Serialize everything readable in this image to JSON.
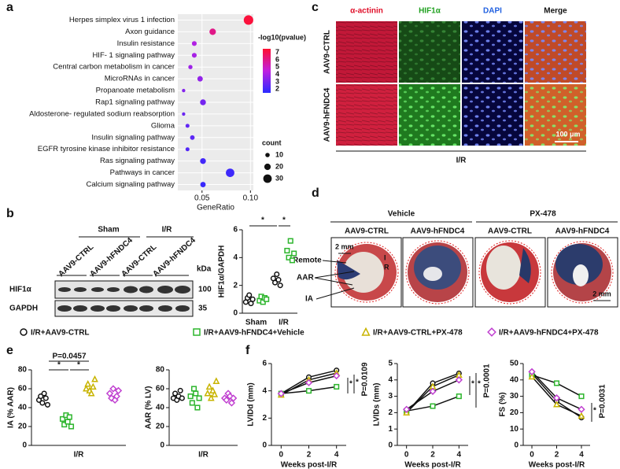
{
  "panels": [
    "a",
    "b",
    "c",
    "d",
    "e",
    "f"
  ],
  "legend": [
    {
      "name": "I/R+AAV9-CTRL",
      "color": "#111111",
      "marker": "circle"
    },
    {
      "name": "I/R+AAV9-hFNDC4+Vehicle",
      "color": "#2db52d",
      "marker": "square"
    },
    {
      "name": "I/R+AAV9-CTRL+PX-478",
      "color": "#c8b400",
      "marker": "triangle"
    },
    {
      "name": "I/R+AAV9-hFNDC4+PX-478",
      "color": "#c040d0",
      "marker": "diamond"
    }
  ],
  "blot": {
    "groups": [
      "Sham",
      "I/R"
    ],
    "lanes": [
      "AAV9-CTRL",
      "AAV9-hFNDC4",
      "AAV9-CTRL",
      "AAV9-hFNDC4"
    ],
    "unit": "kDa",
    "bands": [
      {
        "name": "HIF1α",
        "size": "100"
      },
      {
        "name": "GAPDH",
        "size": "35"
      }
    ]
  },
  "micrographs": {
    "channels": [
      "α-actinin",
      "HIF1α",
      "DAPI",
      "Merge"
    ],
    "rows": [
      "AAV9-CTRL",
      "AAV9-hFNDC4"
    ],
    "scale": "100 μm",
    "condition": "I/R"
  },
  "sections": {
    "groups": [
      "Vehicle",
      "PX-478"
    ],
    "columns": [
      "AAV9-CTRL",
      "AAV9-hFNDC4",
      "AAV9-CTRL",
      "AAV9-hFNDC4"
    ],
    "regions": [
      "Remote",
      "AAR",
      "IA"
    ],
    "markers": [
      "I",
      "R"
    ],
    "scales": [
      "2 mm",
      "2 mm"
    ]
  },
  "chart_data": [
    {
      "type": "dot",
      "categories": [
        "Herpes simplex virus 1 infection",
        "Axon guidance",
        "Insulin resistance",
        "HIF- 1 signaling pathway",
        "Central carbon metabolism in cancer",
        "MicroRNAs in cancer",
        "Propanoate metabolism",
        "Rap1 signaling pathway",
        "Aldosterone- regulated sodium reabsorption",
        "Glioma",
        "Insulin signaling pathway",
        "EGFR tyrosine kinase inhibitor resistance",
        "Ras signaling pathway",
        "Pathways in cancer",
        "Calcium signaling pathway"
      ],
      "x": [
        0.098,
        0.061,
        0.042,
        0.042,
        0.038,
        0.048,
        0.031,
        0.051,
        0.031,
        0.035,
        0.04,
        0.035,
        0.051,
        0.079,
        0.051
      ],
      "color_values": [
        7.3,
        6.0,
        4.2,
        4.0,
        3.8,
        3.6,
        3.3,
        3.0,
        2.8,
        2.6,
        2.5,
        2.3,
        2.0,
        1.9,
        1.8
      ],
      "sizes": [
        35,
        20,
        12,
        12,
        9,
        15,
        5,
        17,
        5,
        8,
        11,
        8,
        17,
        30,
        15
      ],
      "xlabel": "GeneRatio",
      "xlim": [
        0.025,
        0.103
      ],
      "xticks": [
        0.05,
        {
          "value": 0.1,
          "label": "0.10"
        }
      ],
      "color_title": "-log10(pvalue)",
      "color_lim": [
        1.5,
        7.5
      ],
      "color_ticks": [
        2,
        3,
        4,
        5,
        6,
        7
      ],
      "colors": [
        "#2a2aff",
        "#c020e0",
        "#ff1030"
      ],
      "size_title": "count",
      "size_ticks": [
        10,
        20,
        30
      ]
    },
    {
      "type": "strip",
      "categories": [
        "Sham",
        "I/R"
      ],
      "ylabel": "HIF1α/GAPDH",
      "ylim": [
        0,
        6
      ],
      "yticks": [
        0,
        2,
        4,
        6
      ],
      "series": [
        {
          "color": "#111111",
          "marker": "circle",
          "values": [
            [
              0.8,
              1.1,
              1.3,
              0.7,
              1.0
            ],
            [
              2.5,
              2.2,
              2.8,
              2.4,
              2.0
            ]
          ]
        },
        {
          "color": "#2db52d",
          "marker": "square",
          "values": [
            [
              0.9,
              1.2,
              0.8,
              1.1,
              1.0
            ],
            [
              4.5,
              4.0,
              5.2,
              3.8,
              4.3
            ]
          ]
        }
      ],
      "annotations": [
        "*",
        "*"
      ]
    },
    {
      "type": "strip",
      "categories": [
        "I/R"
      ],
      "ylabel": "IA (% AAR)",
      "ylim": [
        0,
        80
      ],
      "yticks": [
        0,
        20,
        40,
        60,
        80
      ],
      "series": [
        {
          "values": [
            [
              48,
              52,
              45,
              55,
              50,
              43
            ]
          ]
        },
        {
          "values": [
            [
              28,
              22,
              32,
              25,
              30,
              20
            ]
          ]
        },
        {
          "values": [
            [
              60,
              65,
              58,
              55,
              62,
              70
            ]
          ]
        },
        {
          "values": [
            [
              55,
              50,
              60,
              48,
              52,
              58
            ]
          ]
        }
      ],
      "annotations": [
        "P=0.0457",
        "*",
        "*"
      ]
    },
    {
      "type": "strip",
      "categories": [
        "I/R"
      ],
      "ylabel": "AAR (% LV)",
      "ylim": [
        0,
        80
      ],
      "yticks": [
        0,
        20,
        40,
        60,
        80
      ],
      "series": [
        {
          "values": [
            [
              50,
              55,
              48,
              52,
              58,
              50
            ]
          ]
        },
        {
          "values": [
            [
              52,
              45,
              60,
              55,
              40,
              50
            ]
          ]
        },
        {
          "values": [
            [
              55,
              62,
              50,
              58,
              54,
              68
            ]
          ]
        },
        {
          "values": [
            [
              50,
              48,
              55,
              52,
              45,
              50
            ]
          ]
        }
      ],
      "annotations": []
    },
    {
      "type": "line",
      "x": [
        0,
        2,
        4
      ],
      "xlim": [
        -0.7,
        4.7
      ],
      "xticks": [
        0,
        2,
        4
      ],
      "xlabel": "Weeks post-I/R",
      "ylabel": "LVIDd (mm)",
      "ylim": [
        0,
        6
      ],
      "yticks": [
        0,
        2,
        4,
        6
      ],
      "series": [
        {
          "values": [
            3.8,
            5.0,
            5.5
          ]
        },
        {
          "values": [
            3.8,
            4.0,
            4.3
          ]
        },
        {
          "values": [
            3.7,
            4.8,
            5.3
          ]
        },
        {
          "values": [
            3.8,
            4.6,
            5.1
          ]
        }
      ],
      "annotations": [
        "*",
        "*",
        "P=0.0109"
      ]
    },
    {
      "type": "line",
      "x": [
        0,
        2,
        4
      ],
      "xlim": [
        -0.7,
        4.7
      ],
      "xticks": [
        0,
        2,
        4
      ],
      "xlabel": "Weeks post-I/R",
      "ylabel": "LVIDs (mm)",
      "ylim": [
        0,
        5
      ],
      "yticks": [
        0,
        1,
        2,
        3,
        4,
        5
      ],
      "series": [
        {
          "values": [
            2.0,
            3.8,
            4.4
          ]
        },
        {
          "values": [
            2.1,
            2.4,
            3.0
          ]
        },
        {
          "values": [
            2.0,
            3.6,
            4.3
          ]
        },
        {
          "values": [
            2.2,
            3.3,
            4.0
          ]
        }
      ],
      "annotations": [
        "*",
        "*",
        "P=0.0001"
      ]
    },
    {
      "type": "line",
      "x": [
        0,
        2,
        4
      ],
      "xlim": [
        -0.7,
        4.7
      ],
      "xticks": [
        0,
        2,
        4
      ],
      "xlabel": "Weeks post-I/R",
      "ylabel": "FS (%)",
      "ylim": [
        0,
        50
      ],
      "yticks": [
        0,
        10,
        20,
        30,
        40,
        50
      ],
      "series": [
        {
          "values": [
            44,
            27,
            17
          ]
        },
        {
          "values": [
            43,
            38,
            30
          ]
        },
        {
          "values": [
            42,
            25,
            18
          ]
        },
        {
          "values": [
            45,
            29,
            22
          ]
        }
      ],
      "annotations": [
        "*",
        "P=0.0031"
      ]
    }
  ]
}
